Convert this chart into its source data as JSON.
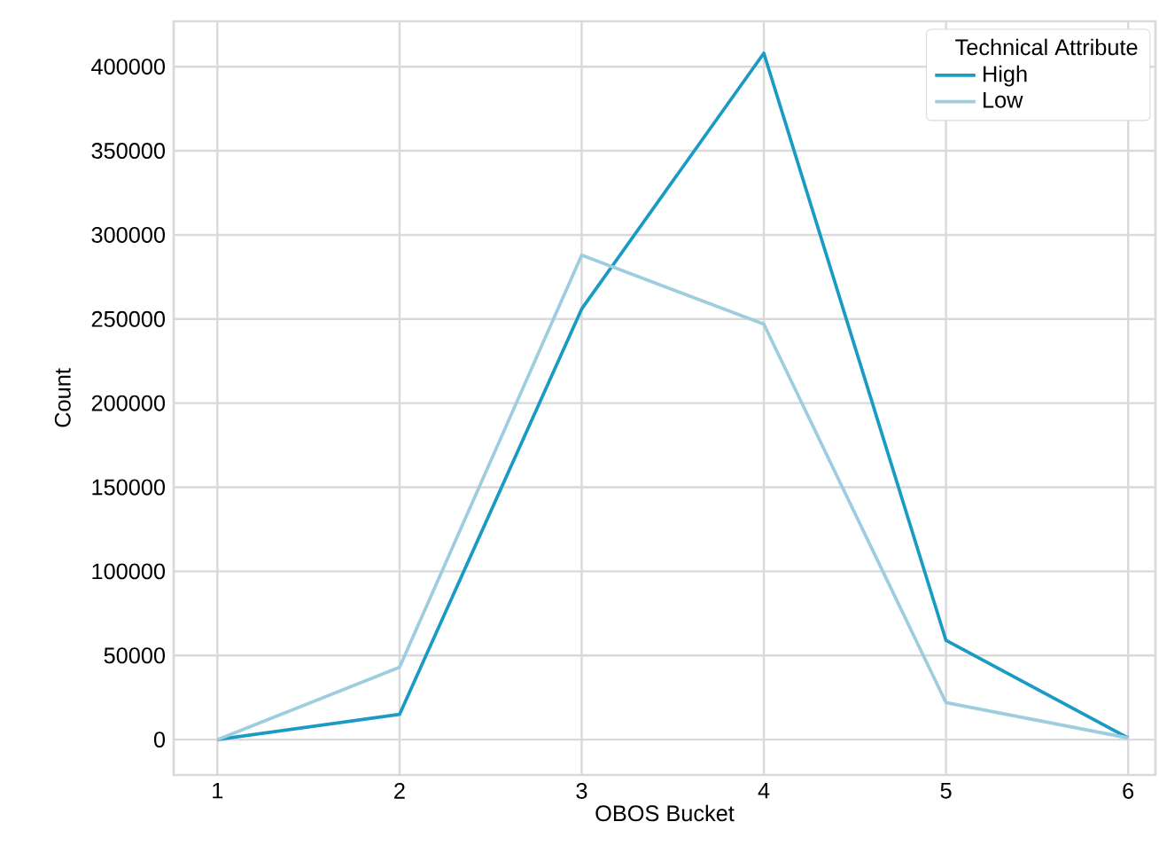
{
  "chart_data": {
    "type": "line",
    "xlabel": "OBOS Bucket",
    "ylabel": "Count",
    "legend_title": "Technical Attribute",
    "x": [
      1,
      2,
      3,
      4,
      5,
      6
    ],
    "series": [
      {
        "name": "High",
        "color": "#1a9bc4",
        "values": [
          0,
          15000,
          256000,
          408000,
          59000,
          1000
        ]
      },
      {
        "name": "Low",
        "color": "#9ecde0",
        "values": [
          0,
          43000,
          288000,
          247000,
          22000,
          1000
        ]
      }
    ],
    "xlim": [
      0.76,
      6.15
    ],
    "ylim": [
      -21000,
      427000
    ],
    "xticks": [
      1,
      2,
      3,
      4,
      5,
      6
    ],
    "yticks": [
      0,
      50000,
      100000,
      150000,
      200000,
      250000,
      300000,
      350000,
      400000
    ],
    "grid": true,
    "legend": "top right",
    "marker": "none",
    "line_style": "solid"
  }
}
